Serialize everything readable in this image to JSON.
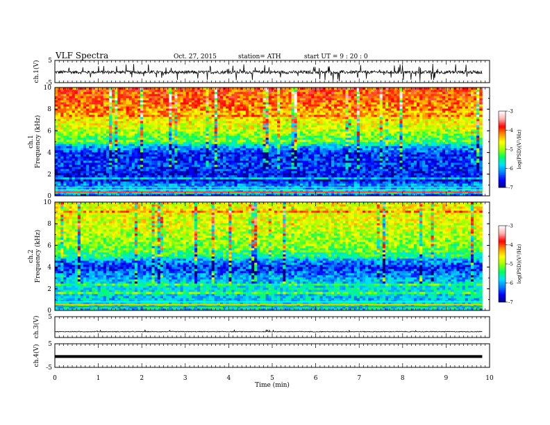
{
  "header": {
    "title": "VLF  Spectra",
    "date": "Oct. 27, 2015",
    "station": "station= ATH",
    "start": "start  UT  =   9  : 20 : 0"
  },
  "chart_data": [
    {
      "type": "line",
      "ylabel": "ch.1(V)",
      "ylim": [
        -5,
        5
      ],
      "yticks": [
        "5",
        "-5"
      ],
      "series": [
        {
          "mean": -0.3,
          "noise": "high",
          "values": []
        }
      ]
    },
    {
      "type": "heatmap",
      "ylabel_lines": [
        "ch.1",
        "Frequency  (kHz)"
      ],
      "ylim": [
        0,
        10
      ],
      "yticks": [
        "0",
        "2",
        "4",
        "6",
        "8",
        "10"
      ],
      "xlim": [
        0,
        10
      ],
      "data_span_minutes": 9.83,
      "colorbar": {
        "label": "log(PSD)(V²/Hz)",
        "range": [
          -7,
          -3
        ],
        "ticks": [
          "-3",
          "-4",
          "-5",
          "-6",
          "-7"
        ],
        "colors": [
          "#000080",
          "#0000ff",
          "#0080ff",
          "#00e0ff",
          "#00ff60",
          "#a0ff00",
          "#ffff00",
          "#ff9000",
          "#ff0000",
          "#ffb0b0",
          "#ffffff"
        ]
      },
      "profile": [
        {
          "f": 0,
          "v": -6.4
        },
        {
          "f": 0.5,
          "v": -5.8
        },
        {
          "f": 1.0,
          "v": -6.3
        },
        {
          "f": 2.0,
          "v": -6.6
        },
        {
          "f": 3.0,
          "v": -6.4
        },
        {
          "f": 4.0,
          "v": -6.5
        },
        {
          "f": 5.0,
          "v": -5.4
        },
        {
          "f": 6.0,
          "v": -4.9
        },
        {
          "f": 7.0,
          "v": -4.6
        },
        {
          "f": 8.0,
          "v": -4.2
        },
        {
          "f": 9.0,
          "v": -4.0
        },
        {
          "f": 10.0,
          "v": -4.0
        }
      ]
    },
    {
      "type": "heatmap",
      "ylabel_lines": [
        "ch.2",
        "Frequency  (kHz)"
      ],
      "ylim": [
        0,
        10
      ],
      "yticks": [
        "0",
        "2",
        "4",
        "6",
        "8",
        "10"
      ],
      "xlim": [
        0,
        10
      ],
      "data_span_minutes": 9.83,
      "colorbar": {
        "label": "log(PSD)(V²/Hz)",
        "range": [
          -7,
          -3
        ],
        "ticks": [
          "-3",
          "-4",
          "-5",
          "-6",
          "-7"
        ],
        "colors": [
          "#000080",
          "#0000ff",
          "#0080ff",
          "#00e0ff",
          "#00ff60",
          "#a0ff00",
          "#ffff00",
          "#ff9000",
          "#ff0000",
          "#ffb0b0",
          "#ffffff"
        ]
      },
      "profile": [
        {
          "f": 0,
          "v": -5.9
        },
        {
          "f": 0.5,
          "v": -5.6
        },
        {
          "f": 1.0,
          "v": -5.9
        },
        {
          "f": 2.0,
          "v": -5.7
        },
        {
          "f": 3.0,
          "v": -6.0
        },
        {
          "f": 4.0,
          "v": -6.5
        },
        {
          "f": 4.8,
          "v": -5.9
        },
        {
          "f": 5.5,
          "v": -5.2
        },
        {
          "f": 6.5,
          "v": -5.0
        },
        {
          "f": 7.5,
          "v": -4.8
        },
        {
          "f": 8.5,
          "v": -4.7
        },
        {
          "f": 10.0,
          "v": -4.6
        }
      ]
    },
    {
      "type": "line",
      "ylabel": "ch.3(V)",
      "ylim": [
        -5,
        5
      ],
      "yticks": [
        "5"
      ],
      "series": [
        {
          "mean": -2.2,
          "noise": "low",
          "values": []
        }
      ]
    },
    {
      "type": "line",
      "ylabel": "ch.4(V)",
      "ylim": [
        -5,
        5
      ],
      "yticks": [
        "5",
        "-5"
      ],
      "series": [
        {
          "mean": -0.4,
          "noise": "none",
          "values": []
        }
      ]
    }
  ],
  "xaxis": {
    "label": "Time  (min)",
    "range": [
      0,
      10
    ],
    "ticks": [
      "0",
      "1",
      "2",
      "3",
      "4",
      "5",
      "6",
      "7",
      "8",
      "9",
      "10"
    ]
  }
}
